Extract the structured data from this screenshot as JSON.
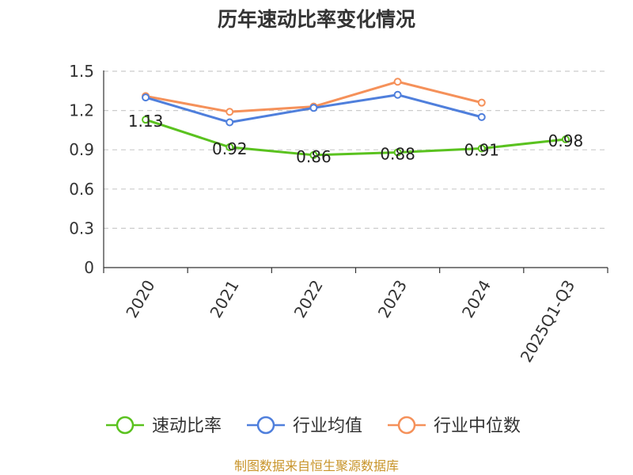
{
  "chart_data": {
    "type": "line",
    "title": "历年速动比率变化情况",
    "xlabel": "",
    "ylabel": "",
    "categories": [
      "2020",
      "2021",
      "2022",
      "2023",
      "2024",
      "2025Q1-Q3"
    ],
    "ylim": [
      0,
      1.5
    ],
    "yticks": [
      "0",
      "0.3",
      "0.6",
      "0.9",
      "1.2",
      "1.5"
    ],
    "grid": true,
    "legend_position": "bottom",
    "series": [
      {
        "name": "速动比率",
        "color": "#5ac21f",
        "values": [
          1.13,
          0.92,
          0.86,
          0.88,
          0.91,
          0.98
        ],
        "data_labels": [
          "1.13",
          "0.92",
          "0.86",
          "0.88",
          "0.91",
          "0.98"
        ]
      },
      {
        "name": "行业均值",
        "color": "#4f7fdc",
        "values": [
          1.3,
          1.11,
          1.22,
          1.32,
          1.15,
          null
        ]
      },
      {
        "name": "行业中位数",
        "color": "#f5915a",
        "values": [
          1.31,
          1.19,
          1.23,
          1.42,
          1.26,
          null
        ]
      }
    ]
  },
  "source_text": "制图数据来自恒生聚源数据库"
}
